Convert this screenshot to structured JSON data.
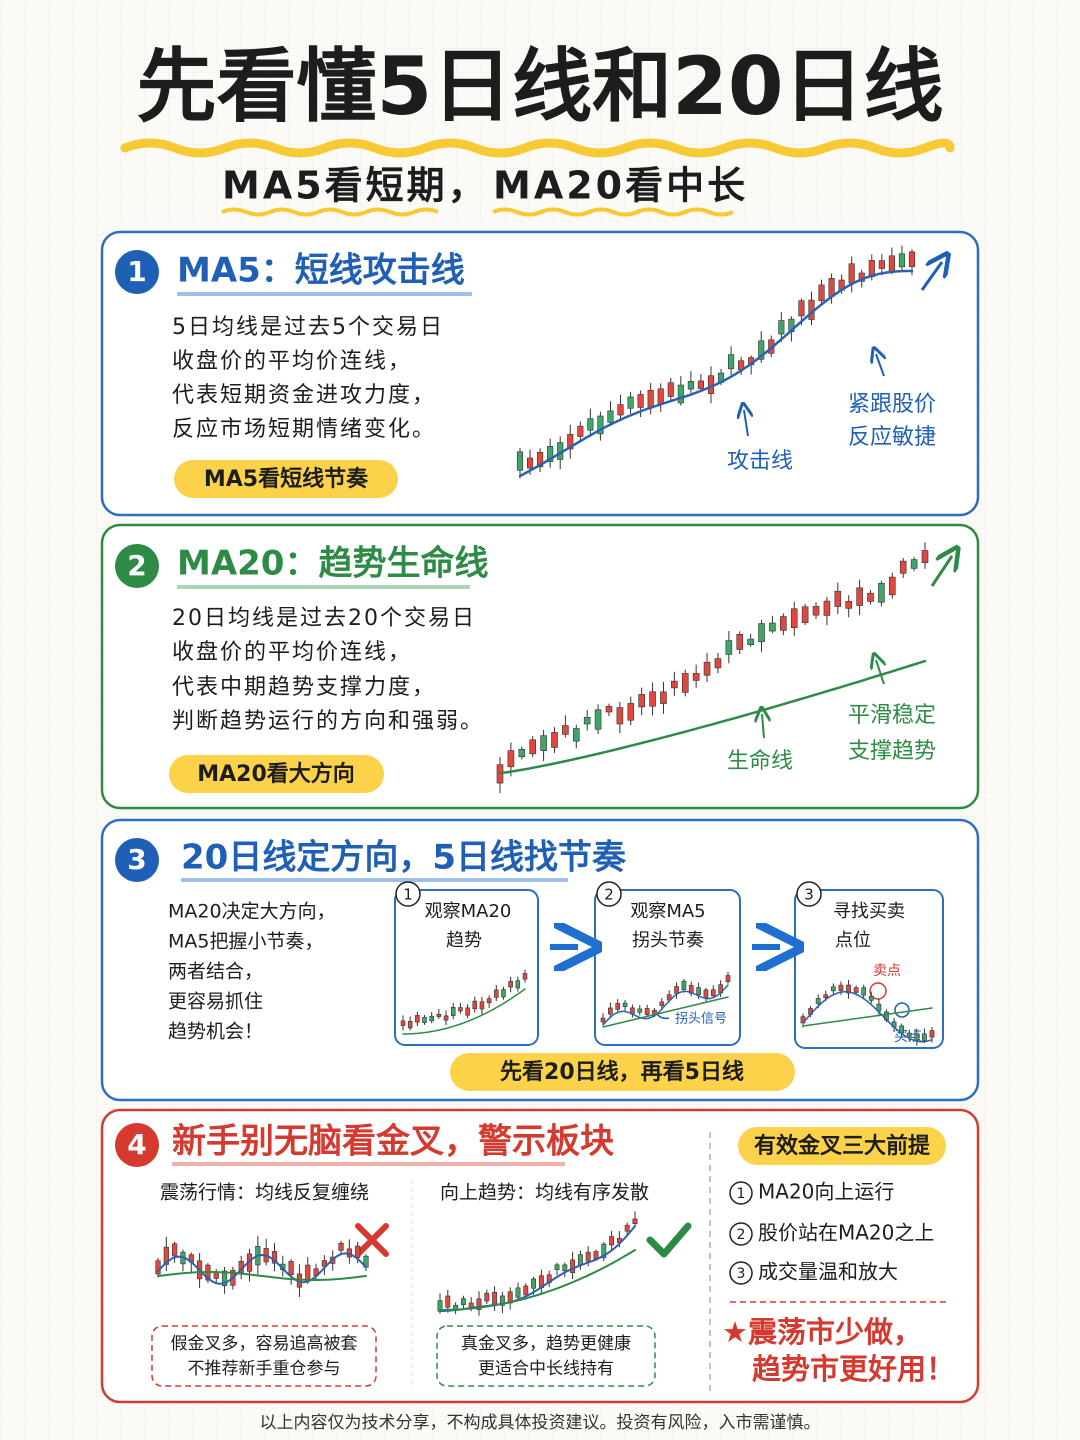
{
  "header": {
    "title": "先看懂5日线和20日线",
    "subtitle_parts": [
      "MA5看短期，",
      "MA20看中长"
    ]
  },
  "sections": [
    {
      "number": "1",
      "title": "MA5：短线攻击线",
      "body": [
        "5日均线是过去5个交易日",
        "收盘价的平均价连线，",
        "代表短期资金进攻力度，",
        "反应市场短期情绪变化。"
      ],
      "tag": "MA5看短线节奏",
      "annotations": [
        [
          "攻击线"
        ],
        [
          "紧跟股价",
          "反应敏捷"
        ]
      ]
    },
    {
      "number": "2",
      "title": "MA20：趋势生命线",
      "body": [
        "20日均线是过去20个交易日",
        "收盘价的平均价连线，",
        "代表中期趋势支撑力度，",
        "判断趋势运行的方向和强弱。"
      ],
      "tag": "MA20看大方向",
      "annotations": [
        [
          "生命线"
        ],
        [
          "平滑稳定",
          "支撑趋势"
        ]
      ]
    },
    {
      "number": "3",
      "title": "20日线定方向，5日线找节奏",
      "body": [
        "MA20决定大方向，",
        "MA5把握小节奏，",
        "两者结合，",
        "更容易抓住",
        "趋势机会！"
      ],
      "steps": [
        {
          "number": "1",
          "label": [
            "观察MA20",
            "趋势"
          ],
          "notes": []
        },
        {
          "number": "2",
          "label": [
            "观察MA5",
            "拐头节奏"
          ],
          "notes": [
            "拐头信号"
          ]
        },
        {
          "number": "3",
          "label": [
            "寻找买卖",
            "点位"
          ],
          "notes": [
            "卖点",
            "买点"
          ]
        }
      ],
      "tag": "先看20日线，再看5日线"
    },
    {
      "number": "4",
      "title": "新手别无脑看金叉，警示板块",
      "panels": [
        {
          "title": "震荡行情：均线反复缠绕",
          "note": [
            "假金叉多，容易追高被套",
            "不推荐新手重仓参与"
          ]
        },
        {
          "title": "向上趋势：均线有序发散",
          "note": [
            "真金叉多，趋势更健康",
            "更适合中长线持有"
          ]
        }
      ],
      "prerequisites": {
        "title": "有效金叉三大前提",
        "items": [
          {
            "number": "1",
            "text": "MA20向上运行"
          },
          {
            "number": "2",
            "text": "股价站在MA20之上"
          },
          {
            "number": "3",
            "text": "成交量温和放大"
          }
        ]
      },
      "conclusion": [
        "★震荡市少做，",
        "趋势市更好用！"
      ]
    }
  ],
  "footer": "以上内容仅为技术分享，不构成具体投资建议。投资有风险，入市需谨慎。"
}
